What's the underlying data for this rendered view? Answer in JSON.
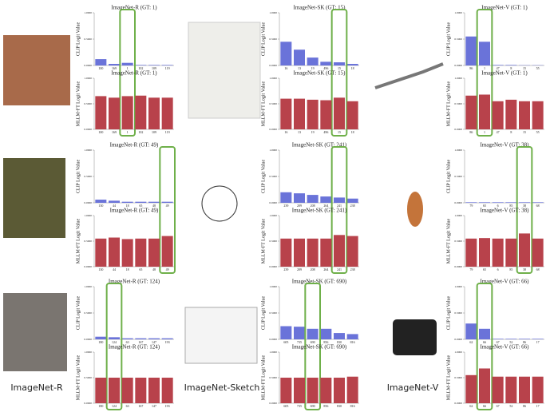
{
  "chart_data": [
    {
      "type": "bar",
      "title": "ImageNet-R (GT: 1)",
      "ylabel": "CLIP Logit Value",
      "categories": [
        "100",
        "169",
        "1",
        "102",
        "109",
        "119"
      ],
      "values": [
        0.12,
        0.03,
        0.05,
        0.01,
        0.01,
        0.01
      ],
      "color": "#6a73d9",
      "ylim": [
        0,
        1
      ],
      "yticks": [
        {
          "value": 0,
          "label": "0.0000"
        },
        {
          "value": 0.5,
          "label": "0.5000"
        },
        {
          "value": 1,
          "label": "1.0000"
        }
      ],
      "highlight_index": 2
    },
    {
      "type": "bar",
      "title": "ImageNet-R (GT: 1)",
      "ylabel": "MLLM-FT Logit Value",
      "categories": [
        "100",
        "169",
        "1",
        "102",
        "109",
        "119"
      ],
      "values": [
        0.65,
        0.62,
        0.65,
        0.66,
        0.62,
        0.62
      ],
      "color": "#b8424b",
      "ylim": [
        0,
        1
      ],
      "yticks": [
        {
          "value": 0,
          "label": "0.0000"
        },
        {
          "value": 0.5,
          "label": "0.5000"
        },
        {
          "value": 1,
          "label": "1.0000"
        }
      ],
      "highlight_index": 2
    },
    {
      "type": "bar",
      "title": "ImageNet-SK (GT: 15)",
      "ylabel": "CLIP Logit Value",
      "categories": [
        "16",
        "13",
        "19",
        "496",
        "15",
        "18"
      ],
      "values": [
        0.45,
        0.3,
        0.15,
        0.07,
        0.06,
        0.03
      ],
      "color": "#6a73d9",
      "ylim": [
        0,
        1
      ],
      "yticks": [
        {
          "value": 0,
          "label": "0.0000"
        },
        {
          "value": 0.5,
          "label": "0.5000"
        },
        {
          "value": 1,
          "label": "1.0000"
        }
      ],
      "highlight_index": 4
    },
    {
      "type": "bar",
      "title": "ImageNet-SK (GT: 15)",
      "ylabel": "MLLM-FT Logit Value",
      "categories": [
        "16",
        "13",
        "19",
        "496",
        "15",
        "18"
      ],
      "values": [
        0.6,
        0.6,
        0.58,
        0.57,
        0.62,
        0.55
      ],
      "color": "#b8424b",
      "ylim": [
        0,
        1
      ],
      "yticks": [
        {
          "value": 0,
          "label": "0.0000"
        },
        {
          "value": 0.5,
          "label": "0.5000"
        },
        {
          "value": 1,
          "label": "1.0000"
        }
      ],
      "highlight_index": 4
    },
    {
      "type": "bar",
      "title": "ImageNet-V (GT: 1)",
      "ylabel": "CLIP Logit Value",
      "categories": [
        "86",
        "1",
        "47",
        "8",
        "15",
        "55"
      ],
      "values": [
        0.55,
        0.45,
        0.01,
        0.01,
        0.005,
        0.005
      ],
      "color": "#6a73d9",
      "ylim": [
        0,
        1
      ],
      "yticks": [
        {
          "value": 0,
          "label": "0.0000"
        },
        {
          "value": 0.5,
          "label": "0.5000"
        },
        {
          "value": 1,
          "label": "1.0000"
        }
      ],
      "highlight_index": 1
    },
    {
      "type": "bar",
      "title": "ImageNet-V (GT: 1)",
      "ylabel": "MLLM-FT Logit Value",
      "categories": [
        "86",
        "1",
        "47",
        "8",
        "15",
        "55"
      ],
      "values": [
        0.66,
        0.68,
        0.55,
        0.58,
        0.55,
        0.55
      ],
      "color": "#b8424b",
      "ylim": [
        0,
        1
      ],
      "yticks": [
        {
          "value": 0,
          "label": "0.0000"
        },
        {
          "value": 0.5,
          "label": "0.5000"
        },
        {
          "value": 1,
          "label": "1.0000"
        }
      ],
      "highlight_index": 1
    },
    {
      "type": "bar",
      "title": "ImageNet-R (GT: 49)",
      "ylabel": "CLIP Logit Value",
      "categories": [
        "130",
        "44",
        "18",
        "65",
        "48",
        "49"
      ],
      "values": [
        0.06,
        0.04,
        0.02,
        0.02,
        0.02,
        0.02
      ],
      "color": "#6a73d9",
      "ylim": [
        0,
        1
      ],
      "yticks": [
        {
          "value": 0,
          "label": "0.0000"
        },
        {
          "value": 0.5,
          "label": "0.5000"
        },
        {
          "value": 1,
          "label": "1.0000"
        }
      ],
      "highlight_index": 5
    },
    {
      "type": "bar",
      "title": "ImageNet-R (GT: 49)",
      "ylabel": "MLLM-FT Logit Value",
      "categories": [
        "130",
        "44",
        "18",
        "65",
        "48",
        "49"
      ],
      "values": [
        0.55,
        0.57,
        0.54,
        0.55,
        0.55,
        0.6
      ],
      "color": "#b8424b",
      "ylim": [
        0,
        1
      ],
      "yticks": [
        {
          "value": 0,
          "label": "0.0000"
        },
        {
          "value": 0.5,
          "label": "0.5000"
        },
        {
          "value": 1,
          "label": "1.0000"
        }
      ],
      "highlight_index": 5
    },
    {
      "type": "bar",
      "title": "ImageNet-SK (GT: 241)",
      "ylabel": "CLIP Logit Value",
      "categories": [
        "239",
        "209",
        "208",
        "264",
        "241",
        "238"
      ],
      "values": [
        0.2,
        0.18,
        0.15,
        0.12,
        0.1,
        0.08
      ],
      "color": "#6a73d9",
      "ylim": [
        0,
        1
      ],
      "yticks": [
        {
          "value": 0,
          "label": "0.0000"
        },
        {
          "value": 0.5,
          "label": "0.5000"
        },
        {
          "value": 1,
          "label": "1.0000"
        }
      ],
      "highlight_index": 4
    },
    {
      "type": "bar",
      "title": "ImageNet-SK (GT: 241)",
      "ylabel": "MLLM-FT Logit Value",
      "categories": [
        "239",
        "209",
        "208",
        "264",
        "241",
        "238"
      ],
      "values": [
        0.55,
        0.55,
        0.55,
        0.55,
        0.62,
        0.6
      ],
      "color": "#b8424b",
      "ylim": [
        0,
        1
      ],
      "yticks": [
        {
          "value": 0,
          "label": "0.0000"
        },
        {
          "value": 0.5,
          "label": "0.5000"
        },
        {
          "value": 1,
          "label": "1.0000"
        }
      ],
      "highlight_index": 4
    },
    {
      "type": "bar",
      "title": "ImageNet-V (GT: 38)",
      "ylabel": "CLIP Logit Value",
      "categories": [
        "79",
        "65",
        "6",
        "85",
        "38",
        "68"
      ],
      "values": [
        0.01,
        0.01,
        0.01,
        0.01,
        0.01,
        0.01
      ],
      "color": "#6a73d9",
      "ylim": [
        0,
        1
      ],
      "yticks": [
        {
          "value": 0,
          "label": "0.0000"
        },
        {
          "value": 0.5,
          "label": "0.5000"
        },
        {
          "value": 1,
          "label": "1.0000"
        }
      ],
      "highlight_index": 4
    },
    {
      "type": "bar",
      "title": "ImageNet-V (GT: 38)",
      "ylabel": "MLLM-FT Logit Value",
      "categories": [
        "79",
        "65",
        "6",
        "85",
        "38",
        "68"
      ],
      "values": [
        0.55,
        0.56,
        0.55,
        0.55,
        0.65,
        0.55
      ],
      "color": "#b8424b",
      "ylim": [
        0,
        1
      ],
      "yticks": [
        {
          "value": 0,
          "label": "0.0000"
        },
        {
          "value": 0.5,
          "label": "0.5000"
        },
        {
          "value": 1,
          "label": "1.0000"
        }
      ],
      "highlight_index": 4
    },
    {
      "type": "bar",
      "title": "ImageNet-R (GT: 124)",
      "ylabel": "CLIP Logit Value",
      "categories": [
        "180",
        "124",
        "63",
        "167",
        "147",
        "193"
      ],
      "values": [
        0.05,
        0.04,
        0.02,
        0.02,
        0.02,
        0.02
      ],
      "color": "#6a73d9",
      "ylim": [
        0,
        1
      ],
      "yticks": [
        {
          "value": 0,
          "label": "0.0000"
        },
        {
          "value": 0.5,
          "label": "0.5000"
        },
        {
          "value": 1,
          "label": "1.0000"
        }
      ],
      "highlight_index": 1
    },
    {
      "type": "bar",
      "title": "ImageNet-R (GT: 124)",
      "ylabel": "MLLM-FT Logit Value",
      "categories": [
        "180",
        "124",
        "63",
        "167",
        "147",
        "193"
      ],
      "values": [
        0.5,
        0.5,
        0.5,
        0.5,
        0.5,
        0.5
      ],
      "color": "#b8424b",
      "ylim": [
        0,
        1
      ],
      "yticks": [
        {
          "value": 0,
          "label": "0.0000"
        },
        {
          "value": 0.5,
          "label": "0.5000"
        },
        {
          "value": 1,
          "label": "1.0000"
        }
      ],
      "highlight_index": 1
    },
    {
      "type": "bar",
      "title": "ImageNet-SK (GT: 690)",
      "ylabel": "CLIP Logit Value",
      "categories": [
        "605",
        "735",
        "690",
        "856",
        "830",
        "816"
      ],
      "values": [
        0.25,
        0.24,
        0.2,
        0.2,
        0.12,
        0.1
      ],
      "color": "#6a73d9",
      "ylim": [
        0,
        1
      ],
      "yticks": [
        {
          "value": 0,
          "label": "0.0000"
        },
        {
          "value": 0.5,
          "label": "0.5000"
        },
        {
          "value": 1,
          "label": "1.0000"
        }
      ],
      "highlight_index": 2
    },
    {
      "type": "bar",
      "title": "ImageNet-SK (GT: 690)",
      "ylabel": "MLLM-FT Logit Value",
      "categories": [
        "605",
        "735",
        "690",
        "856",
        "830",
        "816"
      ],
      "values": [
        0.5,
        0.5,
        0.5,
        0.5,
        0.5,
        0.52
      ],
      "color": "#b8424b",
      "ylim": [
        0,
        1
      ],
      "yticks": [
        {
          "value": 0,
          "label": "0.0000"
        },
        {
          "value": 0.5,
          "label": "0.5000"
        },
        {
          "value": 1,
          "label": "1.0000"
        }
      ],
      "highlight_index": 2
    },
    {
      "type": "bar",
      "title": "ImageNet-V (GT: 66)",
      "ylabel": "CLIP Logit Value",
      "categories": [
        "62",
        "66",
        "67",
        "52",
        "86",
        "17"
      ],
      "values": [
        0.3,
        0.2,
        0.01,
        0.01,
        0.01,
        0.01
      ],
      "color": "#6a73d9",
      "ylim": [
        0,
        1
      ],
      "yticks": [
        {
          "value": 0,
          "label": "0.0000"
        },
        {
          "value": 0.5,
          "label": "0.5000"
        },
        {
          "value": 1,
          "label": "1.0000"
        }
      ],
      "highlight_index": 1
    },
    {
      "type": "bar",
      "title": "ImageNet-V (GT: 66)",
      "ylabel": "MLLM-FT Logit Value",
      "categories": [
        "62",
        "66",
        "67",
        "52",
        "86",
        "17"
      ],
      "values": [
        0.55,
        0.68,
        0.52,
        0.52,
        0.52,
        0.52
      ],
      "color": "#b8424b",
      "ylim": [
        0,
        1
      ],
      "yticks": [
        {
          "value": 0,
          "label": "0.0000"
        },
        {
          "value": 0.5,
          "label": "0.5000"
        },
        {
          "value": 1,
          "label": "1.0000"
        }
      ],
      "highlight_index": 1
    }
  ],
  "column_labels": [
    "ImageNet-R",
    "ImageNet-Sketch",
    "ImageNet-V"
  ]
}
